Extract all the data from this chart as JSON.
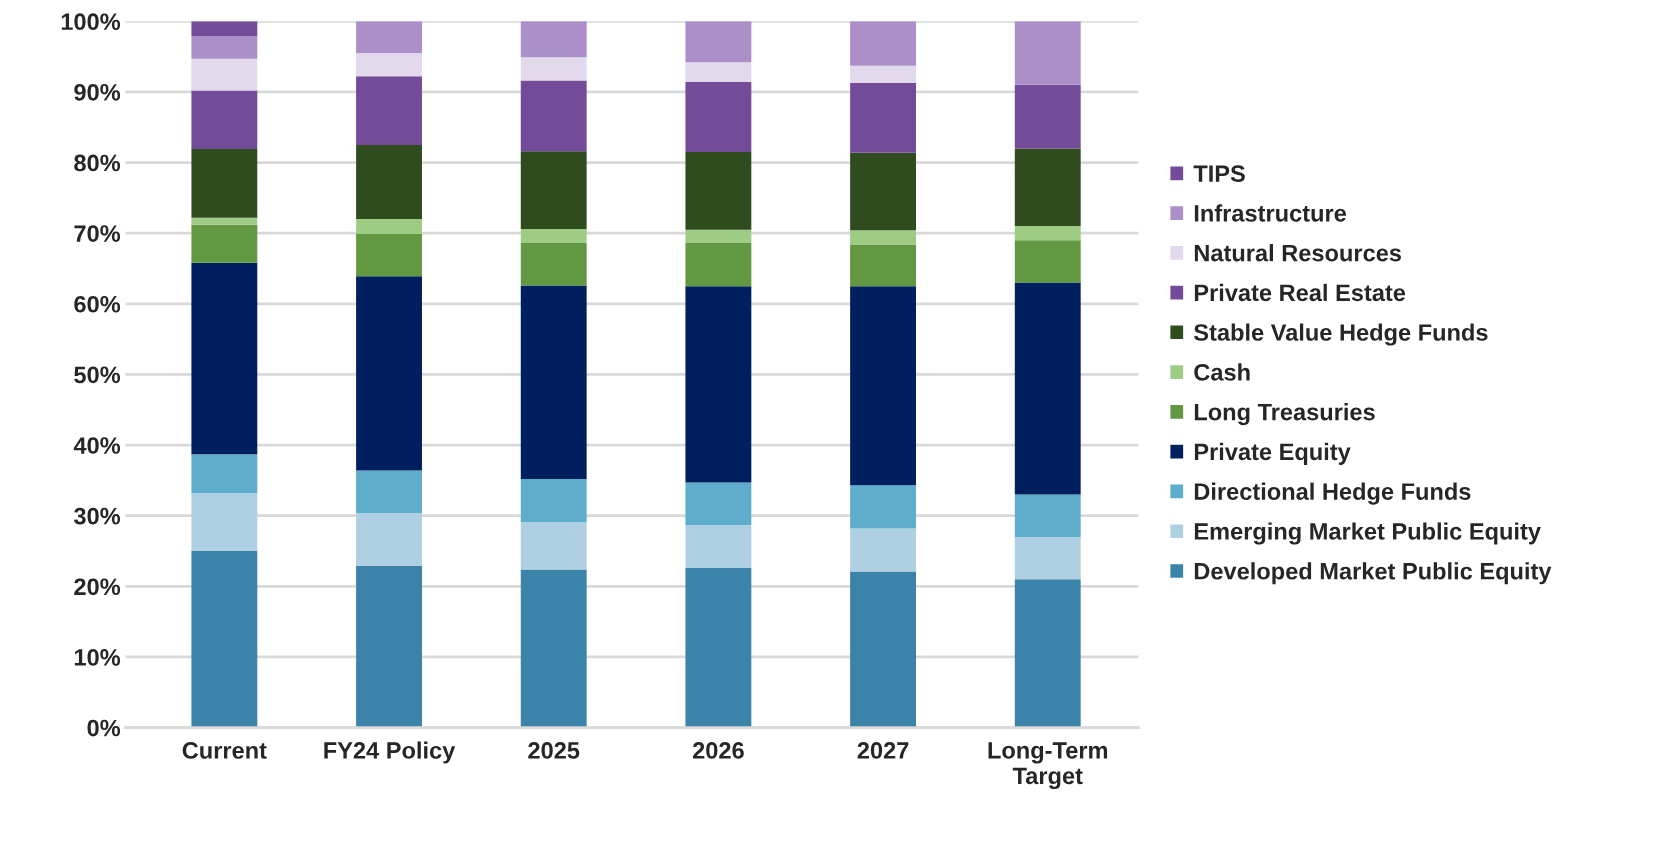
{
  "chart_data": {
    "type": "bar",
    "stacked": true,
    "categories": [
      "Current",
      "FY24 Policy",
      "2025",
      "2026",
      "2027",
      "Long-Term\nTarget"
    ],
    "series": [
      {
        "name": "Developed Market Public Equity",
        "color": "#3b83a8",
        "values": [
          25.0,
          22.9,
          22.4,
          22.6,
          22.1,
          21
        ]
      },
      {
        "name": "Emerging Market Public Equity",
        "color": "#aed0e2",
        "values": [
          8.2,
          7.5,
          6.7,
          6.1,
          6.1,
          6
        ]
      },
      {
        "name": "Directional Hedge Funds",
        "color": "#5eadcc",
        "values": [
          5.5,
          6.0,
          6.1,
          6.0,
          6.1,
          6
        ]
      },
      {
        "name": "Private Equity",
        "color": "#001f5e",
        "values": [
          27.1,
          27.5,
          27.4,
          27.8,
          28.2,
          30
        ]
      },
      {
        "name": "Long Treasuries",
        "color": "#619841",
        "values": [
          5.4,
          6.0,
          6.0,
          6.1,
          5.9,
          6
        ]
      },
      {
        "name": "Cash",
        "color": "#9fcc84",
        "values": [
          1.0,
          2.1,
          2.0,
          1.9,
          2.0,
          2
        ]
      },
      {
        "name": "Stable Value Hedge Funds",
        "color": "#2f4c1f",
        "values": [
          9.7,
          10.5,
          11.0,
          11.0,
          11.0,
          11
        ]
      },
      {
        "name": "Private Real Estate",
        "color": "#744b98",
        "values": [
          8.3,
          9.7,
          10.0,
          9.9,
          9.9,
          9
        ]
      },
      {
        "name": "Natural Resources",
        "color": "#e2d9ec",
        "values": [
          4.5,
          3.3,
          3.3,
          2.8,
          2.4,
          0
        ]
      },
      {
        "name": "Infrastructure",
        "color": "#ac8fc8",
        "values": [
          3.2,
          4.5,
          5.1,
          5.8,
          6.3,
          9
        ]
      },
      {
        "name": "TIPS",
        "color": "#744b98",
        "values": [
          2.1,
          0,
          0,
          0,
          0,
          0
        ]
      }
    ],
    "ylim": [
      0,
      100
    ],
    "yticks": [
      {
        "value": 0,
        "label": "0%"
      },
      {
        "value": 10,
        "label": "10%"
      },
      {
        "value": 20,
        "label": "20%"
      },
      {
        "value": 30,
        "label": "30%"
      },
      {
        "value": 40,
        "label": "40%"
      },
      {
        "value": 50,
        "label": "50%"
      },
      {
        "value": 60,
        "label": "60%"
      },
      {
        "value": 70,
        "label": "70%"
      },
      {
        "value": 80,
        "label": "80%"
      },
      {
        "value": 90,
        "label": "90%"
      },
      {
        "value": 100,
        "label": "100%"
      }
    ],
    "grid": "y",
    "legend": "right"
  }
}
